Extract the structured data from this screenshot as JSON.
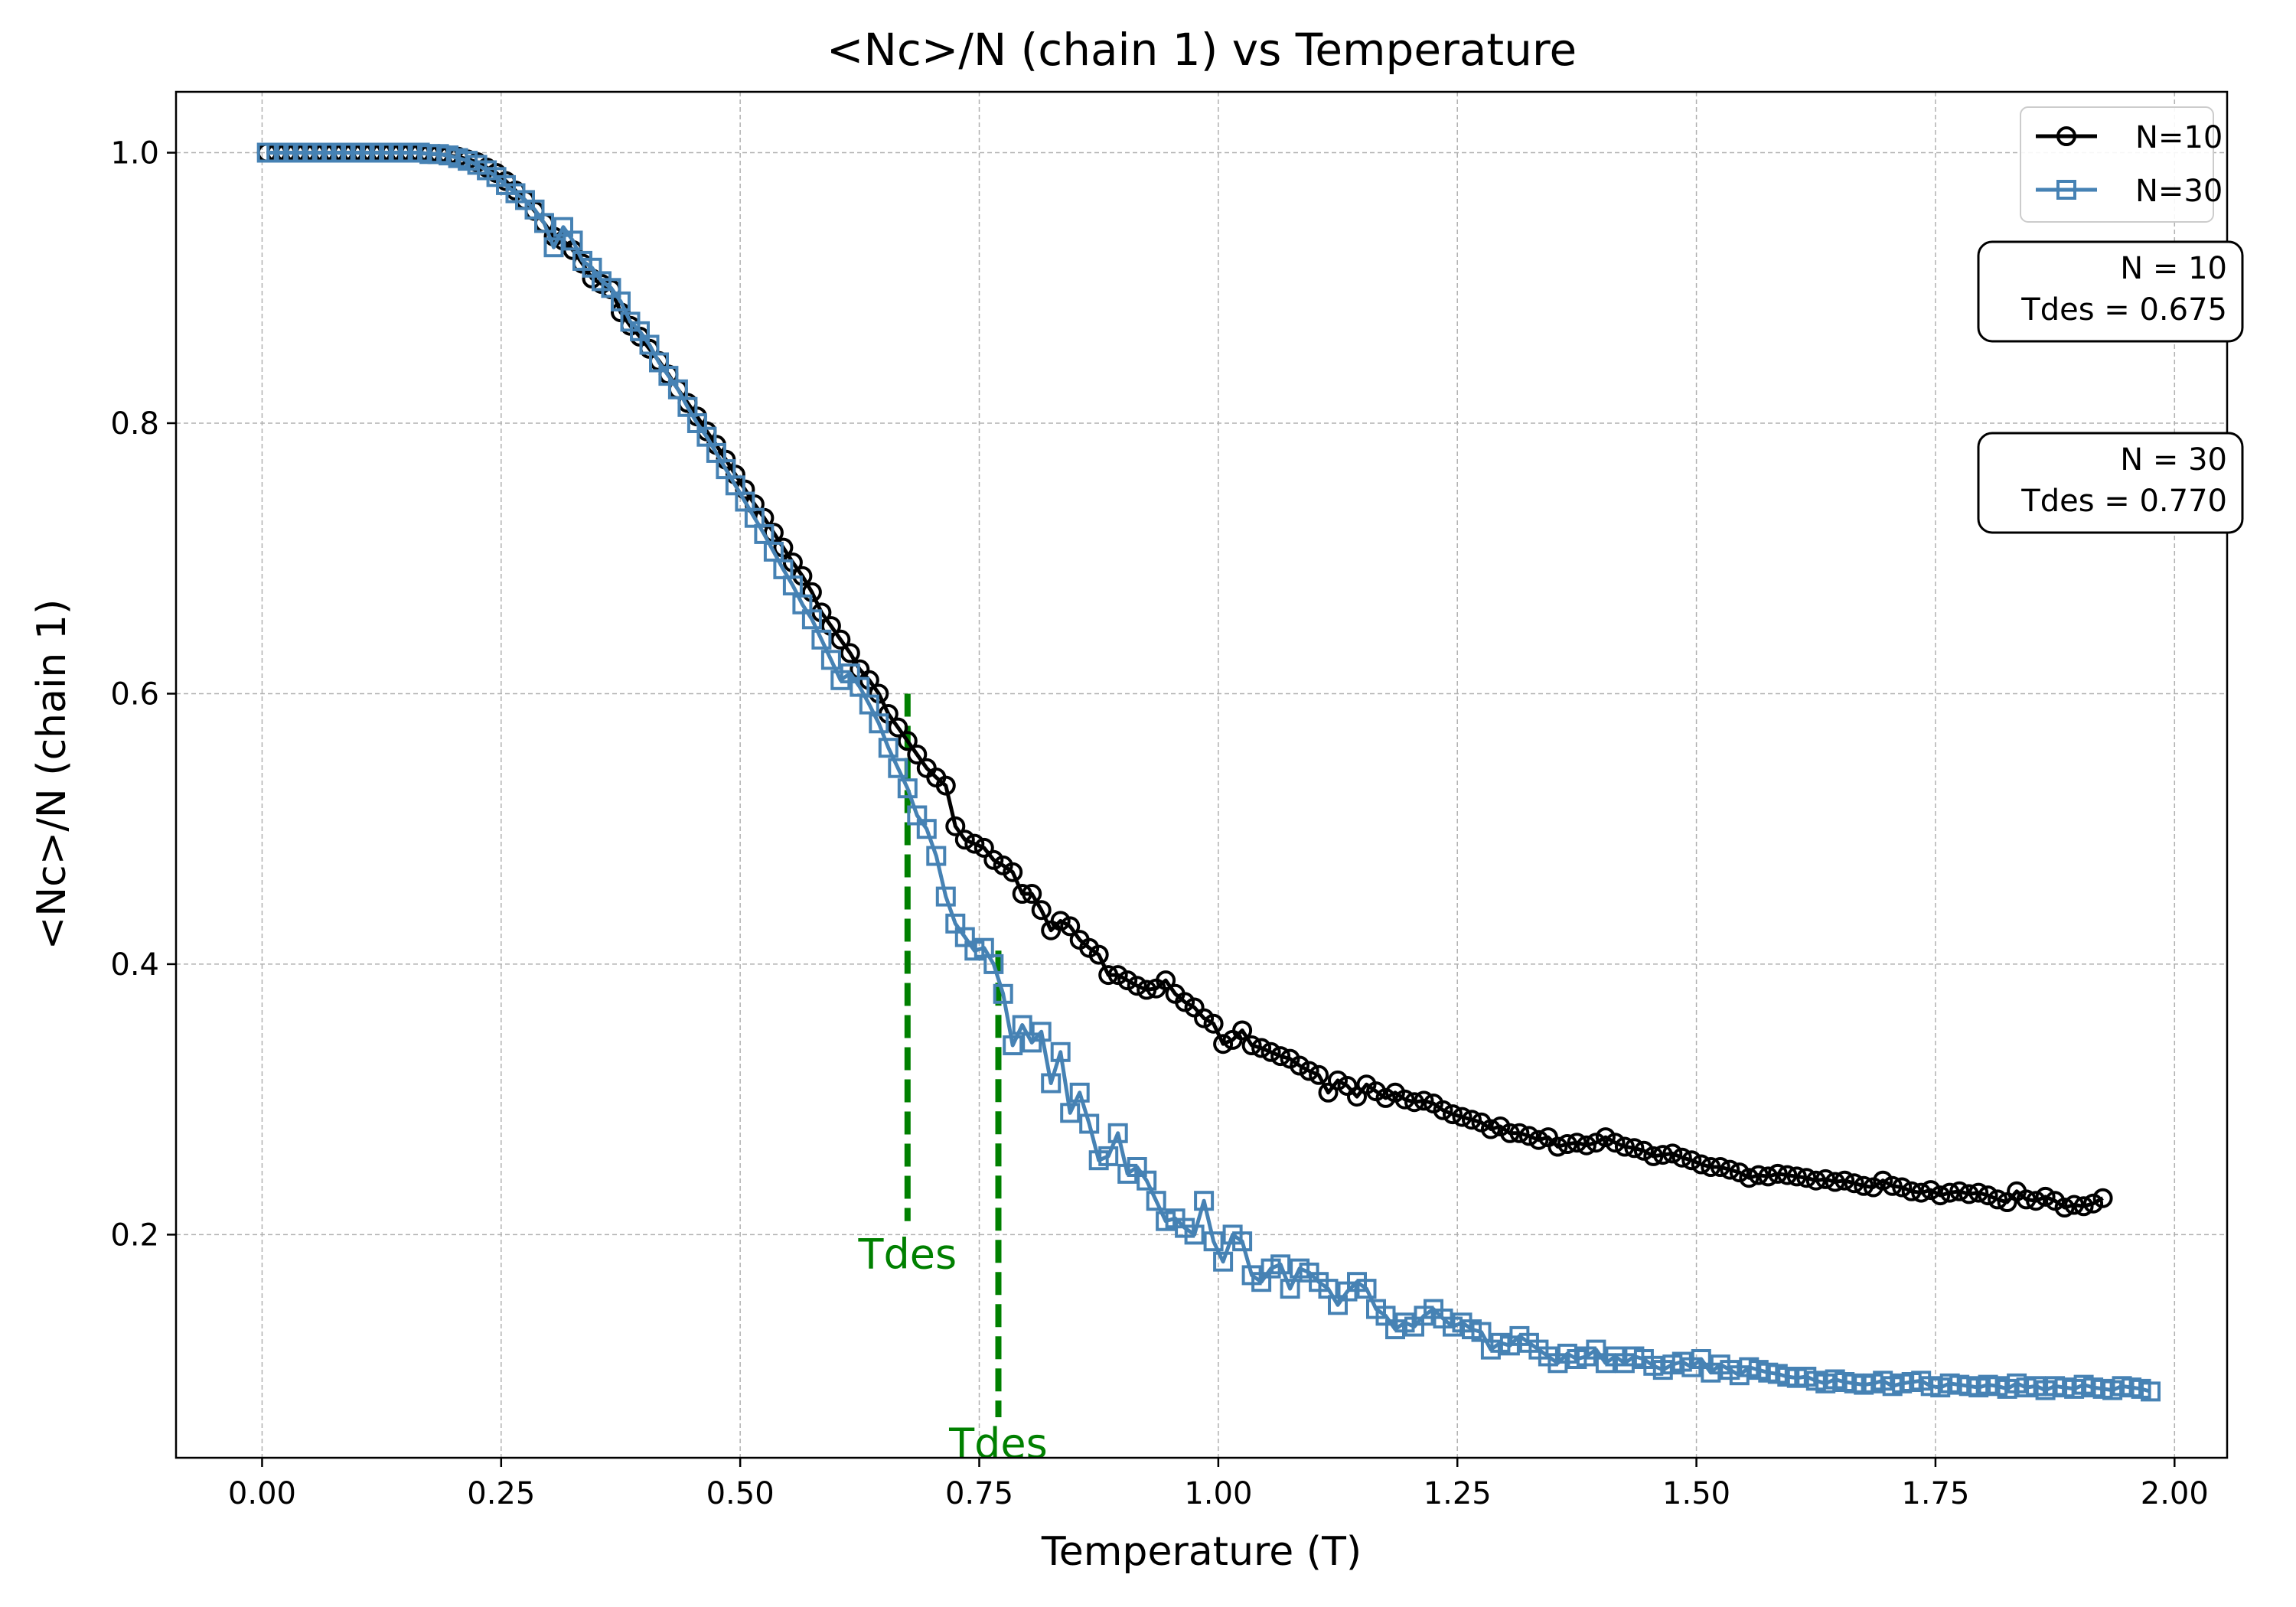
{
  "chart_data": {
    "type": "line",
    "title": "<Nc>/N (chain 1) vs Temperature",
    "xlabel": "Temperature (T)",
    "ylabel": "<Nc>/N (chain 1)",
    "xlim": [
      -0.09,
      2.055
    ],
    "ylim": [
      0.035,
      1.045
    ],
    "xticks": [
      "0.00",
      "0.25",
      "0.50",
      "0.75",
      "1.00",
      "1.25",
      "1.50",
      "1.75",
      "2.00"
    ],
    "yticks": [
      "0.2",
      "0.4",
      "0.6",
      "0.8",
      "1.0"
    ],
    "grid": true,
    "legend_position": "top-right",
    "series": [
      {
        "name": "N=10",
        "color": "#000000",
        "marker": "circle",
        "x_start": 0.005,
        "x_step": 0.01,
        "values": [
          1.0,
          1.0,
          1.0,
          1.0,
          1.0,
          1.0,
          1.0,
          1.0,
          1.0,
          1.0,
          1.0,
          1.0,
          1.0,
          1.0,
          1.0,
          1.0,
          1.0,
          0.999,
          0.999,
          0.998,
          0.997,
          0.995,
          0.993,
          0.989,
          0.985,
          0.979,
          0.972,
          0.965,
          0.957,
          0.948,
          0.938,
          0.935,
          0.928,
          0.918,
          0.907,
          0.903,
          0.899,
          0.882,
          0.872,
          0.864,
          0.855,
          0.846,
          0.836,
          0.825,
          0.815,
          0.805,
          0.794,
          0.784,
          0.773,
          0.762,
          0.751,
          0.74,
          0.73,
          0.719,
          0.708,
          0.697,
          0.687,
          0.675,
          0.66,
          0.65,
          0.64,
          0.63,
          0.618,
          0.61,
          0.6,
          0.585,
          0.575,
          0.565,
          0.555,
          0.545,
          0.538,
          0.532,
          0.502,
          0.492,
          0.489,
          0.486,
          0.477,
          0.473,
          0.468,
          0.452,
          0.452,
          0.44,
          0.425,
          0.432,
          0.428,
          0.418,
          0.412,
          0.407,
          0.392,
          0.392,
          0.388,
          0.384,
          0.381,
          0.382,
          0.388,
          0.378,
          0.372,
          0.368,
          0.36,
          0.356,
          0.341,
          0.344,
          0.351,
          0.34,
          0.338,
          0.335,
          0.332,
          0.33,
          0.325,
          0.321,
          0.318,
          0.305,
          0.314,
          0.31,
          0.302,
          0.311,
          0.306,
          0.301,
          0.305,
          0.3,
          0.298,
          0.299,
          0.297,
          0.292,
          0.289,
          0.287,
          0.285,
          0.283,
          0.278,
          0.28,
          0.275,
          0.275,
          0.273,
          0.27,
          0.272,
          0.265,
          0.267,
          0.268,
          0.266,
          0.268,
          0.272,
          0.268,
          0.265,
          0.264,
          0.262,
          0.258,
          0.259,
          0.26,
          0.257,
          0.255,
          0.252,
          0.25,
          0.25,
          0.248,
          0.246,
          0.242,
          0.244,
          0.243,
          0.245,
          0.244,
          0.243,
          0.242,
          0.24,
          0.241,
          0.239,
          0.24,
          0.238,
          0.236,
          0.235,
          0.24,
          0.236,
          0.235,
          0.232,
          0.231,
          0.233,
          0.229,
          0.231,
          0.232,
          0.23,
          0.231,
          0.229,
          0.226,
          0.224,
          0.232,
          0.226,
          0.225,
          0.228,
          0.225,
          0.22,
          0.222,
          0.221,
          0.223,
          0.227
        ]
      },
      {
        "name": "N=30",
        "color": "#4682b4",
        "marker": "square",
        "x_start": 0.005,
        "x_step": 0.01,
        "values": [
          1.0,
          1.0,
          1.0,
          1.0,
          1.0,
          1.0,
          1.0,
          1.0,
          1.0,
          1.0,
          1.0,
          1.0,
          1.0,
          1.0,
          1.0,
          1.0,
          1.0,
          0.999,
          0.999,
          0.998,
          0.996,
          0.994,
          0.991,
          0.987,
          0.982,
          0.976,
          0.97,
          0.965,
          0.958,
          0.948,
          0.93,
          0.945,
          0.935,
          0.92,
          0.915,
          0.905,
          0.9,
          0.89,
          0.875,
          0.868,
          0.858,
          0.845,
          0.835,
          0.825,
          0.812,
          0.8,
          0.79,
          0.778,
          0.766,
          0.754,
          0.742,
          0.73,
          0.718,
          0.705,
          0.692,
          0.68,
          0.666,
          0.655,
          0.64,
          0.625,
          0.61,
          0.615,
          0.605,
          0.592,
          0.578,
          0.56,
          0.545,
          0.53,
          0.51,
          0.5,
          0.48,
          0.45,
          0.43,
          0.42,
          0.41,
          0.412,
          0.4,
          0.378,
          0.34,
          0.355,
          0.342,
          0.35,
          0.312,
          0.335,
          0.29,
          0.305,
          0.282,
          0.255,
          0.258,
          0.275,
          0.245,
          0.25,
          0.24,
          0.225,
          0.21,
          0.212,
          0.205,
          0.2,
          0.225,
          0.195,
          0.18,
          0.2,
          0.195,
          0.17,
          0.165,
          0.175,
          0.178,
          0.16,
          0.175,
          0.172,
          0.165,
          0.16,
          0.148,
          0.158,
          0.165,
          0.16,
          0.145,
          0.14,
          0.13,
          0.135,
          0.132,
          0.14,
          0.145,
          0.138,
          0.132,
          0.135,
          0.13,
          0.128,
          0.115,
          0.12,
          0.118,
          0.125,
          0.12,
          0.115,
          0.11,
          0.105,
          0.112,
          0.108,
          0.11,
          0.115,
          0.105,
          0.11,
          0.105,
          0.11,
          0.108,
          0.103,
          0.1,
          0.104,
          0.106,
          0.102,
          0.108,
          0.098,
          0.104,
          0.1,
          0.096,
          0.102,
          0.1,
          0.098,
          0.097,
          0.095,
          0.094,
          0.095,
          0.092,
          0.09,
          0.093,
          0.091,
          0.09,
          0.089,
          0.09,
          0.092,
          0.088,
          0.09,
          0.091,
          0.092,
          0.088,
          0.087,
          0.09,
          0.089,
          0.088,
          0.087,
          0.089,
          0.088,
          0.086,
          0.09,
          0.087,
          0.088,
          0.085,
          0.088,
          0.087,
          0.086,
          0.089,
          0.087,
          0.086,
          0.085,
          0.088,
          0.087,
          0.086,
          0.084
        ]
      }
    ],
    "annotations": [
      {
        "label": "Tdes",
        "x": 0.675,
        "y_top": 0.6,
        "y_bottom": 0.21,
        "label_y": 0.175,
        "color": "#008000"
      },
      {
        "label": "Tdes",
        "x": 0.77,
        "y_top": 0.41,
        "y_bottom": 0.065,
        "label_y": 0.035,
        "color": "#008000"
      }
    ],
    "info_boxes": [
      {
        "line1": "N = 10",
        "line2": "Tdes = 0.675"
      },
      {
        "line1": "N = 30",
        "line2": "Tdes = 0.770"
      }
    ]
  }
}
